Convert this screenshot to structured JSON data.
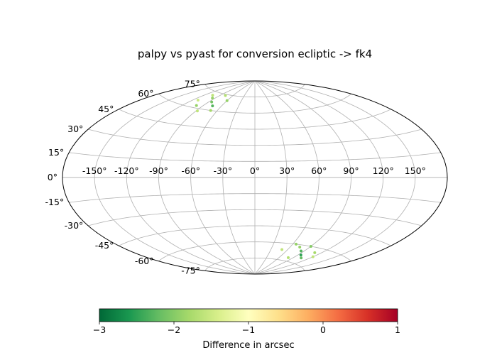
{
  "chart_data": {
    "type": "scatter",
    "projection": "aitoff",
    "title": "palpy vs pyast for conversion ecliptic -> fk4",
    "grid": true,
    "lon_ticks": [
      -150,
      -120,
      -90,
      -60,
      -30,
      0,
      30,
      60,
      90,
      120,
      150
    ],
    "lat_ticks": [
      -75,
      -60,
      -45,
      -30,
      -15,
      0,
      15,
      30,
      45,
      60,
      75
    ],
    "lon_tick_labels": [
      "-150°",
      "-120°",
      "-90°",
      "-60°",
      "-30°",
      "0°",
      "30°",
      "60°",
      "90°",
      "120°",
      "150°"
    ],
    "lat_tick_labels": [
      "-75°",
      "-60°",
      "-45°",
      "-30°",
      "-15°",
      "0°",
      "15°",
      "30°",
      "45°",
      "60°",
      "75°"
    ],
    "colorbar": {
      "label": "Difference in arcsec",
      "range": [
        -3,
        1
      ],
      "ticks": [
        -3,
        -2,
        -1,
        0,
        1
      ],
      "tick_labels": [
        "−3",
        "−2",
        "−1",
        "0",
        "1"
      ],
      "colormap": "RdYlGn_r",
      "colors": [
        "#006837",
        "#1a9850",
        "#66bd63",
        "#a6d96a",
        "#d9ef8b",
        "#ffffbf",
        "#fee08b",
        "#fdae61",
        "#f46d43",
        "#d73027",
        "#a50026"
      ]
    },
    "series": [
      {
        "points": [
          [
            -105,
            72,
            -1.6
          ],
          [
            -95,
            70,
            -1.9
          ],
          [
            -85,
            67,
            -2.1
          ],
          [
            -75,
            64,
            -2.3
          ],
          [
            -100,
            62,
            -1.9
          ],
          [
            -70,
            60,
            -1.8
          ],
          [
            -88,
            58,
            -1.6
          ],
          [
            -60,
            70,
            -1.9
          ],
          [
            -78,
            74,
            -1.7
          ],
          [
            -112,
            66,
            -1.5
          ],
          [
            75,
            -62,
            -1.9
          ],
          [
            85,
            -65,
            -2.3
          ],
          [
            95,
            -68,
            -2.5
          ],
          [
            105,
            -70,
            -2.2
          ],
          [
            65,
            -60,
            -1.9
          ],
          [
            90,
            -60,
            -2.0
          ],
          [
            110,
            -64,
            -1.8
          ],
          [
            80,
            -72,
            -1.7
          ],
          [
            50,
            -66,
            -1.6
          ],
          [
            120,
            -67,
            -1.6
          ]
        ]
      }
    ]
  }
}
